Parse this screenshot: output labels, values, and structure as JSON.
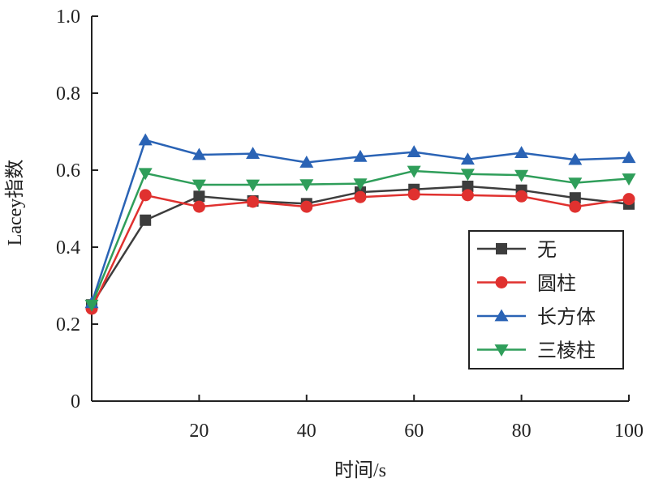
{
  "chart_data": {
    "type": "line",
    "xlabel": "时间/s",
    "ylabel": "Lacey指数",
    "xlim": [
      0,
      100
    ],
    "ylim": [
      0,
      1.0
    ],
    "xticks": [
      20,
      40,
      60,
      80,
      100
    ],
    "xtick_labels": [
      "20",
      "40",
      "60",
      "80",
      "100"
    ],
    "yticks": [
      0,
      0.2,
      0.4,
      0.6,
      0.8,
      1.0
    ],
    "ytick_labels": [
      "0",
      "0.2",
      "0.4",
      "0.6",
      "0.8",
      "1.0"
    ],
    "legend_position": "bottom-right",
    "grid": false,
    "x": [
      0,
      10,
      20,
      30,
      40,
      50,
      60,
      70,
      80,
      90,
      100
    ],
    "series": [
      {
        "name": "无",
        "color": "#3d3d3d",
        "marker": "square",
        "values": [
          0.25,
          0.47,
          0.532,
          0.52,
          0.513,
          0.543,
          0.55,
          0.558,
          0.548,
          0.528,
          0.512
        ]
      },
      {
        "name": "圆柱",
        "color": "#e0312f",
        "marker": "circle",
        "values": [
          0.24,
          0.535,
          0.505,
          0.518,
          0.505,
          0.53,
          0.537,
          0.535,
          0.532,
          0.505,
          0.525
        ]
      },
      {
        "name": "长方体",
        "color": "#2a63b5",
        "marker": "triangle-up",
        "values": [
          0.255,
          0.678,
          0.64,
          0.643,
          0.62,
          0.635,
          0.647,
          0.628,
          0.645,
          0.627,
          0.632
        ]
      },
      {
        "name": "三棱柱",
        "color": "#2f9e5a",
        "marker": "triangle-down",
        "values": [
          0.25,
          0.592,
          0.562,
          0.562,
          0.563,
          0.565,
          0.598,
          0.59,
          0.587,
          0.567,
          0.578
        ]
      }
    ]
  }
}
